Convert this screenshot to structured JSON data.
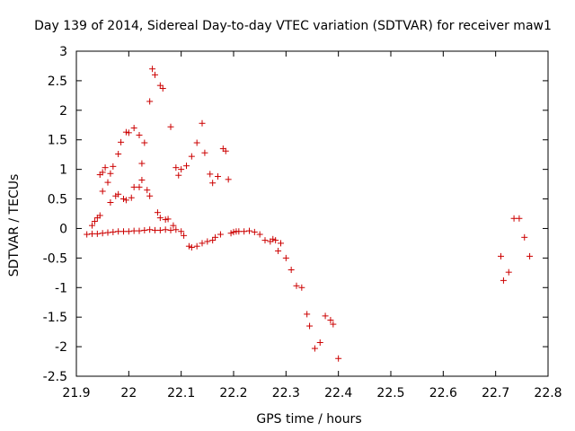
{
  "chart_data": {
    "type": "scatter",
    "title": "Day 139 of 2014, Sidereal Day-to-day VTEC variation (SDTVAR) for receiver maw1",
    "xlabel": "GPS time / hours",
    "ylabel": "SDTVAR / TECUs",
    "xlim": [
      21.9,
      22.8
    ],
    "ylim": [
      -2.5,
      3
    ],
    "xticks": [
      21.9,
      22,
      22.1,
      22.2,
      22.3,
      22.4,
      22.5,
      22.6,
      22.7,
      22.8
    ],
    "xtick_labels": [
      "21.9",
      "22",
      "22.1",
      "22.2",
      "22.3",
      "22.4",
      "22.5",
      "22.6",
      "22.7",
      "22.8"
    ],
    "yticks": [
      -2.5,
      -2,
      -1.5,
      -1,
      -0.5,
      0,
      0.5,
      1,
      1.5,
      2,
      2.5,
      3
    ],
    "ytick_labels": [
      "-2.5",
      "-2",
      "-1.5",
      "-1",
      "-0.5",
      "0",
      "0.5",
      "1",
      "1.5",
      "2",
      "2.5",
      "3"
    ],
    "grid": false,
    "marker": "+",
    "marker_color": "#cc0000",
    "series": [
      {
        "name": "maw1",
        "points": [
          [
            21.93,
            0.05
          ],
          [
            21.935,
            0.12
          ],
          [
            21.94,
            0.18
          ],
          [
            21.945,
            0.22
          ],
          [
            21.945,
            0.91
          ],
          [
            21.95,
            0.95
          ],
          [
            21.955,
            1.03
          ],
          [
            21.95,
            0.63
          ],
          [
            21.96,
            0.78
          ],
          [
            21.965,
            0.44
          ],
          [
            21.965,
            0.93
          ],
          [
            21.97,
            1.05
          ],
          [
            21.975,
            0.55
          ],
          [
            21.98,
            0.58
          ],
          [
            21.98,
            1.26
          ],
          [
            21.985,
            1.46
          ],
          [
            21.99,
            0.5
          ],
          [
            21.995,
            0.48
          ],
          [
            21.995,
            1.63
          ],
          [
            22.0,
            1.62
          ],
          [
            22.005,
            0.52
          ],
          [
            22.01,
            1.7
          ],
          [
            22.01,
            0.7
          ],
          [
            22.02,
            1.58
          ],
          [
            22.02,
            0.7
          ],
          [
            22.025,
            1.1
          ],
          [
            22.025,
            0.82
          ],
          [
            22.03,
            1.45
          ],
          [
            22.035,
            0.65
          ],
          [
            22.04,
            0.55
          ],
          [
            22.04,
            2.15
          ],
          [
            22.045,
            2.7
          ],
          [
            22.05,
            2.6
          ],
          [
            22.055,
            0.27
          ],
          [
            22.06,
            2.42
          ],
          [
            22.06,
            0.18
          ],
          [
            22.065,
            2.37
          ],
          [
            22.07,
            0.15
          ],
          [
            22.075,
            0.16
          ],
          [
            22.08,
            1.72
          ],
          [
            22.085,
            0.05
          ],
          [
            22.09,
            1.03
          ],
          [
            22.095,
            0.9
          ],
          [
            22.1,
            1.0
          ],
          [
            22.1,
            -0.05
          ],
          [
            22.105,
            -0.12
          ],
          [
            22.11,
            1.06
          ],
          [
            22.115,
            -0.3
          ],
          [
            22.12,
            1.22
          ],
          [
            22.12,
            -0.32
          ],
          [
            22.13,
            1.45
          ],
          [
            22.13,
            -0.3
          ],
          [
            22.14,
            1.78
          ],
          [
            22.14,
            -0.25
          ],
          [
            22.145,
            1.28
          ],
          [
            22.15,
            -0.22
          ],
          [
            22.155,
            0.92
          ],
          [
            22.16,
            0.77
          ],
          [
            22.16,
            -0.2
          ],
          [
            22.165,
            -0.15
          ],
          [
            22.17,
            0.88
          ],
          [
            22.175,
            -0.1
          ],
          [
            22.18,
            1.35
          ],
          [
            22.185,
            1.31
          ],
          [
            22.19,
            0.83
          ],
          [
            22.195,
            -0.08
          ],
          [
            22.2,
            -0.06
          ],
          [
            22.205,
            -0.05
          ],
          [
            22.21,
            -0.05
          ],
          [
            22.22,
            -0.05
          ],
          [
            22.23,
            -0.04
          ],
          [
            22.24,
            -0.06
          ],
          [
            22.25,
            -0.1
          ],
          [
            22.26,
            -0.2
          ],
          [
            22.27,
            -0.22
          ],
          [
            22.275,
            -0.18
          ],
          [
            22.28,
            -0.2
          ],
          [
            22.285,
            -0.38
          ],
          [
            22.29,
            -0.25
          ],
          [
            22.3,
            -0.5
          ],
          [
            22.31,
            -0.7
          ],
          [
            22.32,
            -0.97
          ],
          [
            22.33,
            -1.0
          ],
          [
            22.34,
            -1.45
          ],
          [
            22.345,
            -1.65
          ],
          [
            22.355,
            -2.03
          ],
          [
            22.365,
            -1.93
          ],
          [
            22.375,
            -1.48
          ],
          [
            22.385,
            -1.55
          ],
          [
            22.39,
            -1.62
          ],
          [
            22.4,
            -2.2
          ],
          [
            21.92,
            -0.1
          ],
          [
            21.93,
            -0.09
          ],
          [
            21.94,
            -0.09
          ],
          [
            21.95,
            -0.08
          ],
          [
            21.96,
            -0.07
          ],
          [
            21.97,
            -0.06
          ],
          [
            21.98,
            -0.05
          ],
          [
            21.99,
            -0.05
          ],
          [
            22.0,
            -0.05
          ],
          [
            22.01,
            -0.04
          ],
          [
            22.02,
            -0.04
          ],
          [
            22.03,
            -0.03
          ],
          [
            22.04,
            -0.02
          ],
          [
            22.05,
            -0.03
          ],
          [
            22.06,
            -0.03
          ],
          [
            22.07,
            -0.02
          ],
          [
            22.08,
            -0.03
          ],
          [
            22.09,
            -0.02
          ],
          [
            22.71,
            -0.47
          ],
          [
            22.715,
            -0.88
          ],
          [
            22.725,
            -0.74
          ],
          [
            22.735,
            0.17
          ],
          [
            22.745,
            0.17
          ],
          [
            22.755,
            -0.15
          ],
          [
            22.765,
            -0.47
          ]
        ]
      }
    ]
  }
}
